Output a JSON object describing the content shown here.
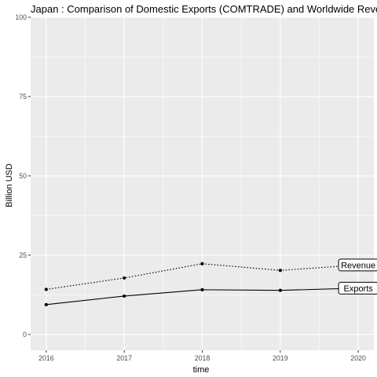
{
  "chart_data": {
    "type": "line",
    "title": "Japan : Comparison of Domestic Exports (COMTRADE) and Worldwide Revenue",
    "xlabel": "time",
    "ylabel": "Billion USD",
    "x": [
      2016,
      2017,
      2018,
      2019,
      2020
    ],
    "xlim": [
      2016,
      2020
    ],
    "ylim": [
      0,
      100
    ],
    "x_ticks": [
      2016,
      2017,
      2018,
      2019,
      2020
    ],
    "y_ticks": [
      0,
      25,
      50,
      75,
      100
    ],
    "grid": true,
    "legend": "none",
    "series": [
      {
        "name": "Revenue",
        "label": "Revenue",
        "line_style": "dotted",
        "values": [
          14.2,
          17.8,
          22.3,
          20.2,
          21.9
        ]
      },
      {
        "name": "Exports",
        "label": "Exports",
        "line_style": "solid",
        "values": [
          9.4,
          12.1,
          14.1,
          13.9,
          14.6
        ]
      }
    ]
  },
  "colors": {
    "panel_background": "#ebebeb",
    "grid_major": "#ffffff",
    "line": "#000000"
  }
}
